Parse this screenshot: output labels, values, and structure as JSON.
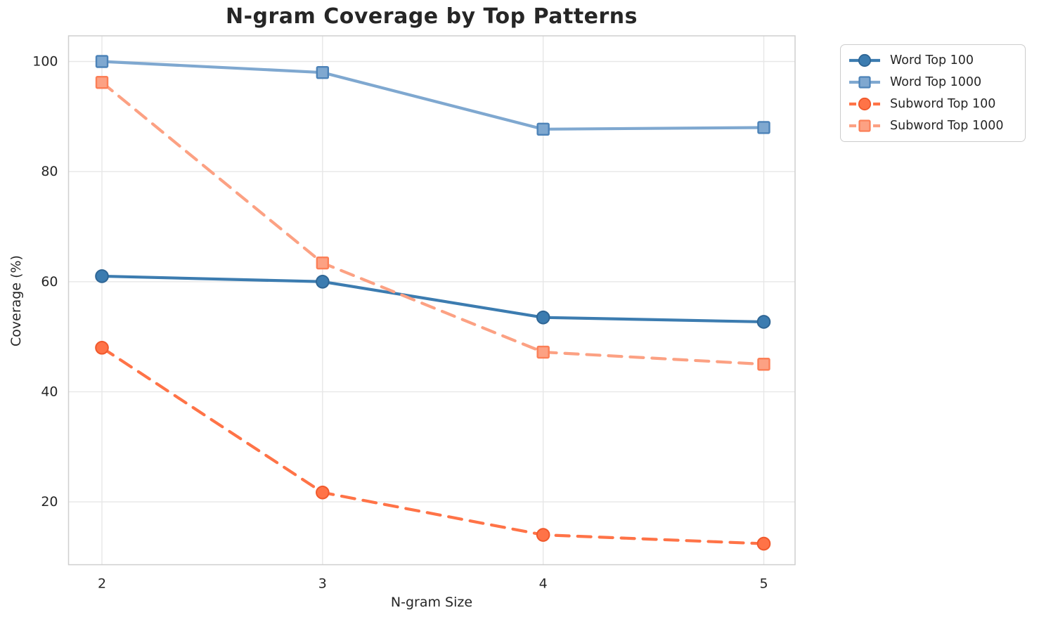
{
  "title": "N-gram Coverage by Top Patterns",
  "chart_data": {
    "type": "line",
    "title": "N-gram Coverage by Top Patterns",
    "xlabel": "N-gram Size",
    "ylabel": "Coverage (%)",
    "x": [
      2,
      3,
      4,
      5
    ],
    "x_tick_labels": [
      "2",
      "3",
      "4",
      "5"
    ],
    "y_ticks": [
      20,
      40,
      60,
      80,
      100
    ],
    "xlim": [
      1.8486,
      5.1418
    ],
    "ylim": [
      8.58,
      104.66
    ],
    "grid": true,
    "legend_position": "outside-top-right",
    "series": [
      {
        "name": "Word Top 100",
        "values": [
          61,
          60,
          53.5,
          52.7
        ],
        "color": "#3C7CB0",
        "marker_edge": "#2F6695",
        "marker": "circle",
        "line_style": "solid"
      },
      {
        "name": "Word Top 1000",
        "values": [
          100,
          98,
          87.7,
          88
        ],
        "color": "#7FA8D0",
        "marker_edge": "#4D83B8",
        "marker": "square",
        "line_style": "solid"
      },
      {
        "name": "Subword Top 100",
        "values": [
          48,
          21.7,
          14,
          12.4
        ],
        "color": "#FF7347",
        "marker_edge": "#F0592C",
        "marker": "circle",
        "line_style": "dashed"
      },
      {
        "name": "Subword Top 1000",
        "values": [
          96.2,
          63.4,
          47.2,
          45
        ],
        "color": "#FCA183",
        "marker_edge": "#FB7F57",
        "marker": "square",
        "line_style": "dashed"
      }
    ]
  },
  "style": {
    "grid_color": "#e7e7e7",
    "spine_color": "#cfcfcf",
    "tick_label_color": "#262626",
    "background": "#ffffff"
  }
}
